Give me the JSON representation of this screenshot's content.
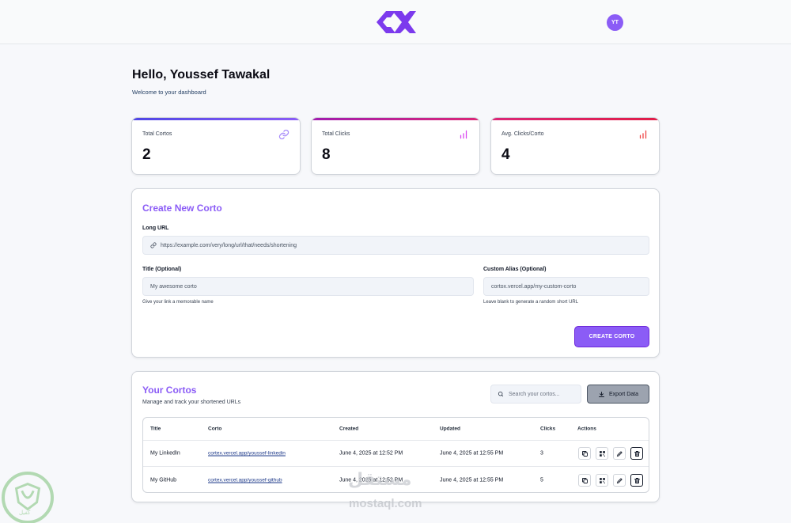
{
  "header": {
    "avatar_initials": "YT"
  },
  "greeting": {
    "title": "Hello, Youssef Tawakal",
    "subtitle": "Welcome to your dashboard"
  },
  "stats": [
    {
      "label": "Total Cortos",
      "value": "2",
      "icon": "link-icon",
      "accent": "#6d28d9"
    },
    {
      "label": "Total Clicks",
      "value": "8",
      "icon": "bar-chart-icon",
      "accent": "#c026d3"
    },
    {
      "label": "Avg. Clicks/Corto",
      "value": "4",
      "icon": "bar-chart-icon",
      "accent": "#e11d48"
    }
  ],
  "create": {
    "title": "Create New Corto",
    "long_url_label": "Long URL",
    "long_url_placeholder": "https://example.com/very/long/url/that/needs/shortening",
    "title_label": "Title (Optional)",
    "title_placeholder": "My awesome corto",
    "title_hint": "Give your link a memorable name",
    "alias_label": "Custom Alias (Optional)",
    "alias_placeholder": "cortox.vercel.app/my-custom-corto",
    "alias_hint": "Leave blank to generate a random short URL",
    "button": "CREATE CORTO"
  },
  "list": {
    "title": "Your Cortos",
    "subtitle": "Manage and track your shortened URLs",
    "search_placeholder": "Search your cortos...",
    "export_label": "Export Data",
    "columns": [
      "Title",
      "Corto",
      "Created",
      "Updated",
      "Clicks",
      "Actions"
    ],
    "rows": [
      {
        "title": "My LinkedIn",
        "corto": "cortex.vercel.app/youssef-linkedin",
        "created": "June 4, 2025 at 12:52 PM",
        "updated": "June 4, 2025 at 12:55 PM",
        "clicks": "3"
      },
      {
        "title": "My GitHub",
        "corto": "cortex.vercel.app/youssef-github",
        "created": "June 4, 2025 at 12:52 PM",
        "updated": "June 4, 2025 at 12:55 PM",
        "clicks": "5"
      }
    ]
  },
  "watermark": {
    "arabic": "مستقل",
    "latin": "mostaql.com",
    "badge_text": "كفيل"
  },
  "colors": {
    "brand": "#8b5cf6",
    "brand_dark": "#6d28d9"
  }
}
